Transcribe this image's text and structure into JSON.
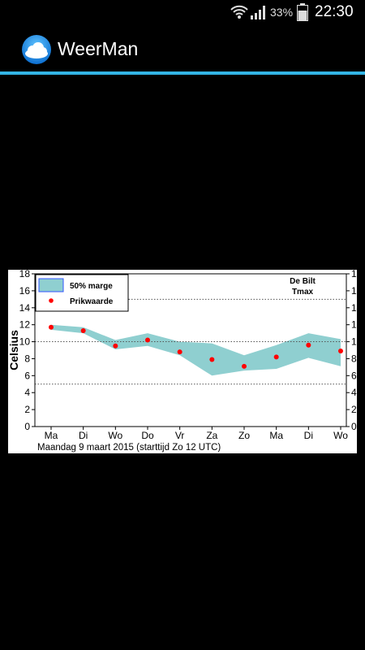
{
  "status_bar": {
    "battery_percent": "33%",
    "time": "22:30",
    "icons": [
      "wifi-icon",
      "signal-icon",
      "battery-icon"
    ]
  },
  "app": {
    "title": "WeerMan",
    "icon": "cloud-icon",
    "accent_color": "#33b5e5"
  },
  "chart_data": {
    "type": "line",
    "station": "De Bilt",
    "variable": "Tmax",
    "ylabel": "Celsius",
    "ylim": [
      0,
      18
    ],
    "y_ticks": [
      0,
      2,
      4,
      6,
      8,
      10,
      12,
      14,
      16,
      18
    ],
    "x": [
      "Ma",
      "Di",
      "Wo",
      "Do",
      "Vr",
      "Za",
      "Zo",
      "Ma",
      "Di",
      "Wo"
    ],
    "subtitle": "Maandag   9 maart   2015  (starttijd  Zo 12 UTC)",
    "band_color": "#8fcfd0",
    "point_color": "#ff0000",
    "legend": [
      {
        "label": "50% marge",
        "type": "band"
      },
      {
        "label": "Prikwaarde",
        "type": "point"
      }
    ],
    "dotted_lines": [
      5,
      10,
      15
    ],
    "series": [
      {
        "name": "Prikwaarde",
        "values": [
          11.7,
          11.3,
          9.5,
          10.2,
          8.8,
          7.9,
          7.1,
          8.2,
          9.6,
          8.9
        ]
      },
      {
        "name": "50% marge",
        "upper": [
          12.0,
          11.7,
          10.2,
          11.0,
          10.0,
          9.8,
          8.4,
          9.6,
          11.0,
          10.3
        ],
        "lower": [
          11.4,
          11.0,
          9.1,
          9.5,
          8.4,
          6.0,
          6.6,
          6.8,
          8.1,
          7.1
        ]
      }
    ]
  }
}
